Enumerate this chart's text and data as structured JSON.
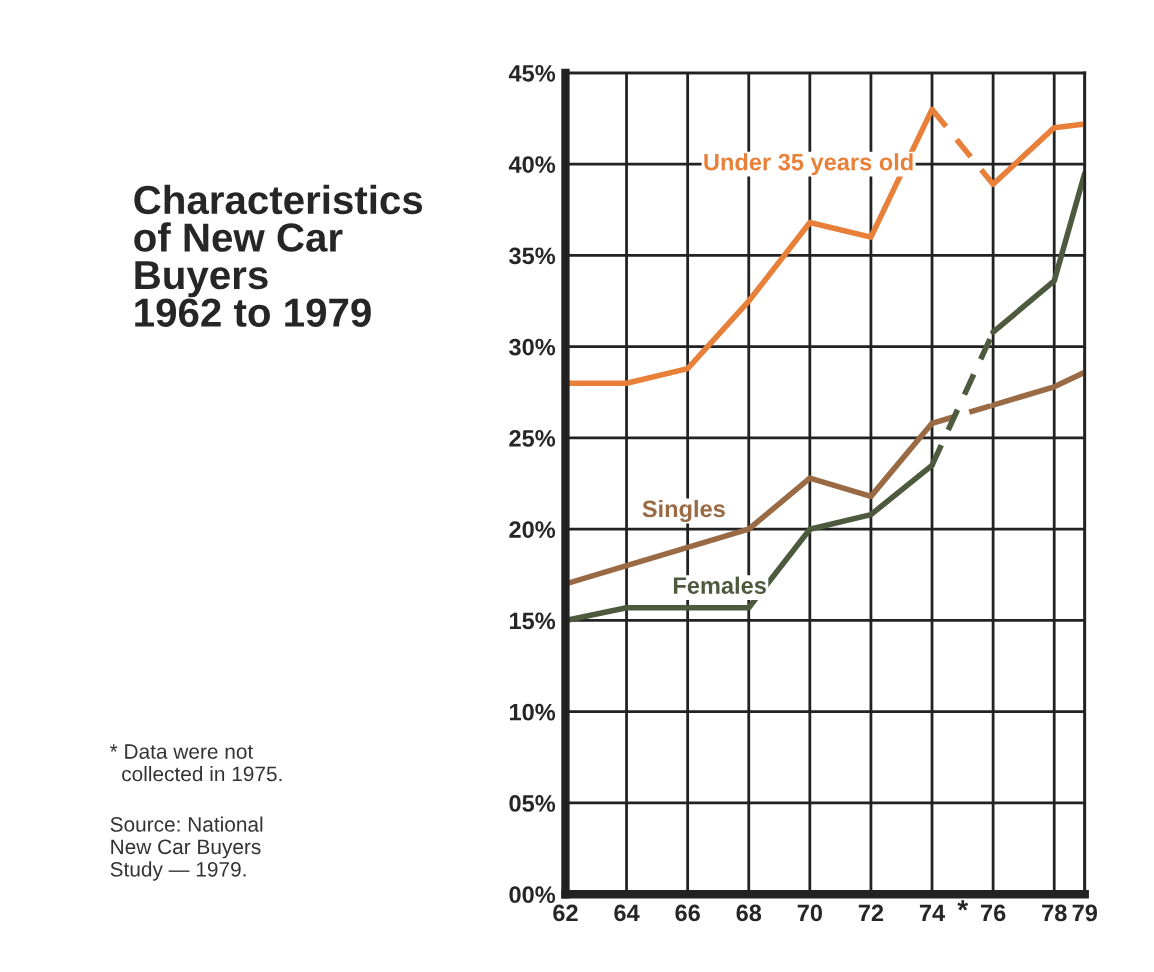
{
  "chart_data": {
    "type": "line",
    "title": "Characteristics\nof New Car\nBuyers\n1962 to 1979",
    "series": [
      {
        "name": "Under 35 years old",
        "color": "#e8803a",
        "x": [
          62,
          64,
          66,
          68,
          70,
          72,
          74
        ],
        "values": [
          28,
          28,
          28.8,
          32.5,
          36.8,
          36,
          43
        ]
      },
      {
        "color": "#e8803a",
        "x": [
          74,
          76
        ],
        "values": [
          43,
          38.9
        ],
        "line_style": "dashed"
      },
      {
        "color": "#e8803a",
        "x": [
          76,
          78,
          79
        ],
        "values": [
          38.9,
          42,
          42.2
        ]
      },
      {
        "name": "Singles",
        "color": "#9a6a45",
        "x": [
          62,
          64,
          66,
          68,
          70,
          72,
          74
        ],
        "values": [
          17,
          18,
          19,
          20,
          22.8,
          21.8,
          25.8
        ]
      },
      {
        "color": "#9a6a45",
        "x": [
          74,
          76
        ],
        "values": [
          25.8,
          26.8
        ],
        "line_style": "dashed"
      },
      {
        "color": "#9a6a45",
        "x": [
          76,
          78,
          79
        ],
        "values": [
          26.8,
          27.8,
          28.6
        ]
      },
      {
        "name": "Females",
        "color": "#4e5a3e",
        "x": [
          62,
          64,
          66,
          68,
          70,
          72,
          74
        ],
        "values": [
          15,
          15.7,
          15.7,
          15.7,
          20,
          20.8,
          23.5
        ]
      },
      {
        "color": "#4e5a3e",
        "x": [
          74,
          76
        ],
        "values": [
          23.5,
          30.8
        ],
        "line_style": "dashed"
      },
      {
        "color": "#4e5a3e",
        "x": [
          76,
          78,
          79
        ],
        "values": [
          30.8,
          33.6,
          39.5
        ]
      }
    ],
    "xlim": [
      62,
      79
    ],
    "xticks": [
      62,
      64,
      66,
      68,
      70,
      72,
      74,
      76,
      78,
      79
    ],
    "ylim": [
      0,
      45
    ],
    "yticks": [
      {
        "value": 0,
        "label": "00%"
      },
      {
        "value": 5,
        "label": "05%"
      },
      {
        "value": 10,
        "label": "10%"
      },
      {
        "value": 15,
        "label": "15%"
      },
      {
        "value": 20,
        "label": "20%"
      },
      {
        "value": 25,
        "label": "25%"
      },
      {
        "value": 30,
        "label": "30%"
      },
      {
        "value": 35,
        "label": "35%"
      },
      {
        "value": 40,
        "label": "40%"
      },
      {
        "value": 45,
        "label": "45%"
      }
    ],
    "grid": true,
    "legend": false,
    "line_style": "solid",
    "marker": "none",
    "annotations": [
      "*",
      "* Data were not\n  collected in 1975.",
      "Source: National\nNew Car Buyers\nStudy — 1979."
    ]
  }
}
